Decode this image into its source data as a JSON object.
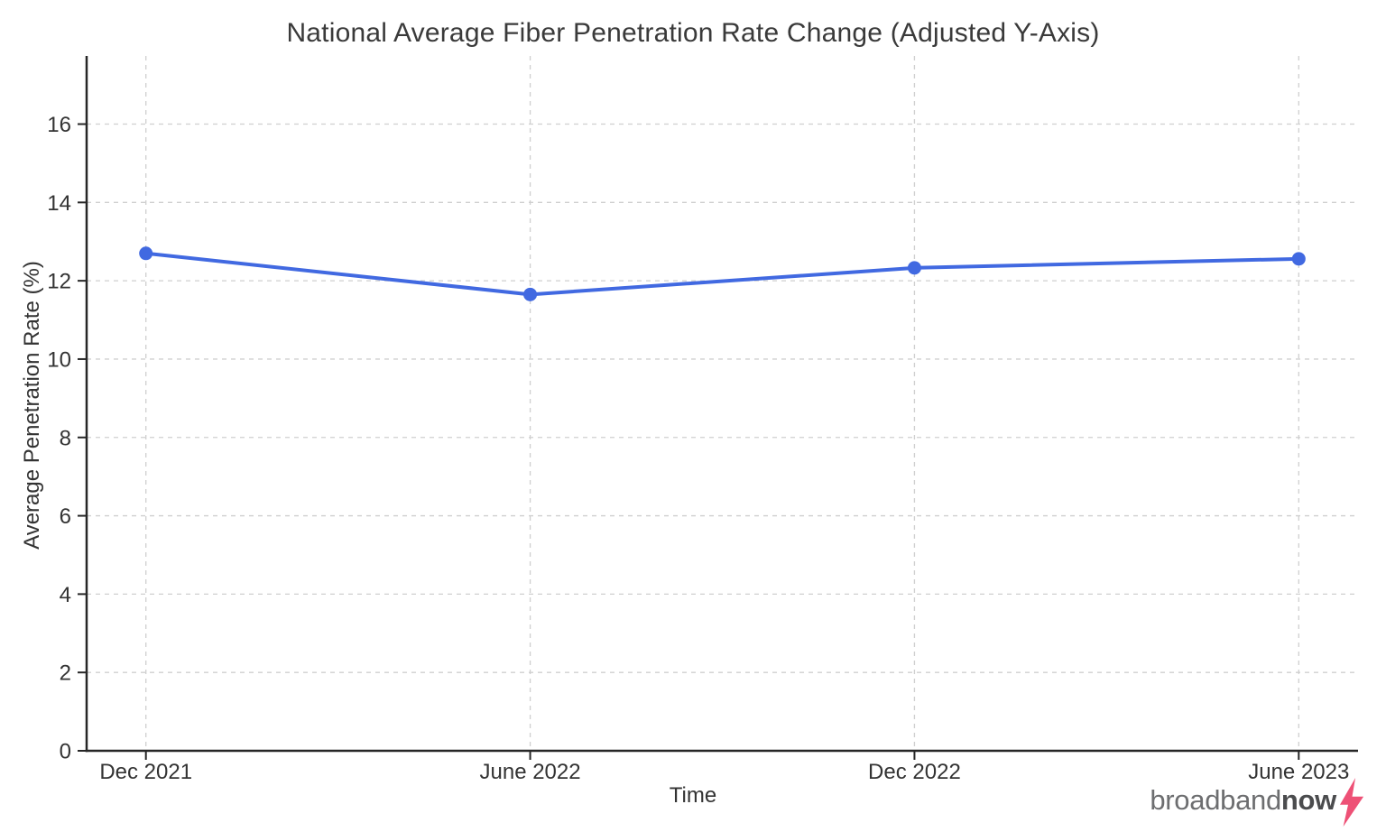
{
  "chart_data": {
    "type": "line",
    "title": "National Average Fiber Penetration Rate Change (Adjusted Y-Axis)",
    "xlabel": "Time",
    "ylabel": "Average Penetration Rate (%)",
    "categories": [
      "Dec 2021",
      "June 2022",
      "Dec 2022",
      "June 2023"
    ],
    "values": [
      12.7,
      11.65,
      12.33,
      12.56
    ],
    "ylim": [
      0,
      17.74
    ],
    "yticks": [
      0,
      2,
      4,
      6,
      8,
      10,
      12,
      14,
      16
    ],
    "grid": "dashed",
    "legend_position": "none",
    "line_color": "#4169e1",
    "marker": "circle"
  },
  "colors": {
    "grid": "#cfcfcf",
    "spine": "#262626",
    "tick_text": "#333333",
    "title_text": "#3a3a3a"
  },
  "branding": {
    "logo_part1": "broadband",
    "logo_part2": "now",
    "bolt_icon_color": "#ee5176"
  }
}
